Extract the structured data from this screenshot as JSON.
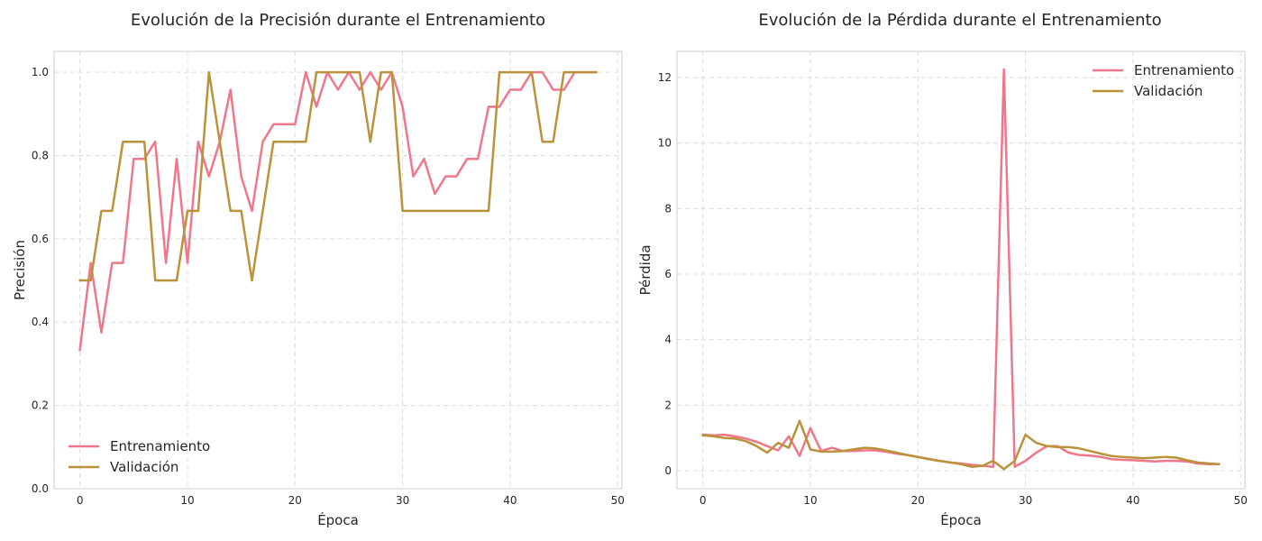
{
  "colors": {
    "entrenamiento": "#f0778a",
    "validacion": "#b9923a"
  },
  "chart_data": [
    {
      "type": "line",
      "title": "Evolución de la Precisión durante el Entrenamiento",
      "xlabel": "Época",
      "ylabel": "Precisión",
      "xlim": [
        -2.4,
        50.4
      ],
      "ylim": [
        0.0,
        1.05
      ],
      "xticks": [
        0,
        10,
        20,
        30,
        40,
        50
      ],
      "yticks": [
        0.0,
        0.2,
        0.4,
        0.6,
        0.8,
        1.0
      ],
      "ytick_labels": [
        "0.0",
        "0.2",
        "0.4",
        "0.6",
        "0.8",
        "1.0"
      ],
      "grid": true,
      "legend_position": "lower-left",
      "x": [
        0,
        1,
        2,
        3,
        4,
        5,
        6,
        7,
        8,
        9,
        10,
        11,
        12,
        13,
        14,
        15,
        16,
        17,
        18,
        19,
        20,
        21,
        22,
        23,
        24,
        25,
        26,
        27,
        28,
        29,
        30,
        31,
        32,
        33,
        34,
        35,
        36,
        37,
        38,
        39,
        40,
        41,
        42,
        43,
        44,
        45,
        46,
        47,
        48
      ],
      "series": [
        {
          "name": "Entrenamiento",
          "color_key": "entrenamiento",
          "values": [
            0.333,
            0.542,
            0.375,
            0.542,
            0.542,
            0.792,
            0.792,
            0.833,
            0.542,
            0.792,
            0.542,
            0.833,
            0.75,
            0.833,
            0.958,
            0.75,
            0.667,
            0.833,
            0.875,
            0.875,
            0.875,
            1.0,
            0.917,
            1.0,
            0.958,
            1.0,
            0.958,
            1.0,
            0.958,
            1.0,
            0.917,
            0.75,
            0.792,
            0.708,
            0.75,
            0.75,
            0.792,
            0.792,
            0.917,
            0.917,
            0.958,
            0.958,
            1.0,
            1.0,
            0.958,
            0.958,
            1.0,
            1.0,
            1.0
          ]
        },
        {
          "name": "Validación",
          "color_key": "validacion",
          "values": [
            0.5,
            0.5,
            0.667,
            0.667,
            0.833,
            0.833,
            0.833,
            0.5,
            0.5,
            0.5,
            0.667,
            0.667,
            1.0,
            0.833,
            0.667,
            0.667,
            0.5,
            0.667,
            0.833,
            0.833,
            0.833,
            0.833,
            1.0,
            1.0,
            1.0,
            1.0,
            1.0,
            0.833,
            1.0,
            1.0,
            0.667,
            0.667,
            0.667,
            0.667,
            0.667,
            0.667,
            0.667,
            0.667,
            0.667,
            1.0,
            1.0,
            1.0,
            1.0,
            0.833,
            0.833,
            1.0,
            1.0,
            1.0,
            1.0
          ]
        }
      ]
    },
    {
      "type": "line",
      "title": "Evolución de la Pérdida durante el Entrenamiento",
      "xlabel": "Época",
      "ylabel": "Pérdida",
      "xlim": [
        -2.4,
        50.4
      ],
      "ylim": [
        -0.55,
        12.8
      ],
      "xticks": [
        0,
        10,
        20,
        30,
        40,
        50
      ],
      "yticks": [
        0,
        2,
        4,
        6,
        8,
        10,
        12
      ],
      "ytick_labels": [
        "0",
        "2",
        "4",
        "6",
        "8",
        "10",
        "12"
      ],
      "grid": true,
      "legend_position": "top-right",
      "x": [
        0,
        1,
        2,
        3,
        4,
        5,
        6,
        7,
        8,
        9,
        10,
        11,
        12,
        13,
        14,
        15,
        16,
        17,
        18,
        19,
        20,
        21,
        22,
        23,
        24,
        25,
        26,
        27,
        28,
        29,
        30,
        31,
        32,
        33,
        34,
        35,
        36,
        37,
        38,
        39,
        40,
        41,
        42,
        43,
        44,
        45,
        46,
        47,
        48
      ],
      "series": [
        {
          "name": "Entrenamiento",
          "color_key": "entrenamiento",
          "values": [
            1.1,
            1.08,
            1.1,
            1.05,
            0.98,
            0.88,
            0.75,
            0.62,
            1.05,
            0.45,
            1.3,
            0.6,
            0.7,
            0.6,
            0.6,
            0.62,
            0.62,
            0.58,
            0.52,
            0.48,
            0.42,
            0.36,
            0.3,
            0.25,
            0.22,
            0.18,
            0.15,
            0.12,
            12.25,
            0.12,
            0.3,
            0.55,
            0.75,
            0.75,
            0.55,
            0.48,
            0.46,
            0.42,
            0.35,
            0.33,
            0.32,
            0.3,
            0.28,
            0.3,
            0.3,
            0.28,
            0.22,
            0.2,
            0.2
          ]
        },
        {
          "name": "Validación",
          "color_key": "validacion",
          "values": [
            1.08,
            1.05,
            1.0,
            0.98,
            0.9,
            0.75,
            0.55,
            0.85,
            0.7,
            1.52,
            0.65,
            0.58,
            0.58,
            0.6,
            0.65,
            0.7,
            0.68,
            0.62,
            0.55,
            0.48,
            0.42,
            0.35,
            0.3,
            0.25,
            0.2,
            0.12,
            0.15,
            0.3,
            0.05,
            0.3,
            1.1,
            0.85,
            0.75,
            0.72,
            0.72,
            0.68,
            0.6,
            0.52,
            0.45,
            0.42,
            0.4,
            0.38,
            0.4,
            0.42,
            0.4,
            0.32,
            0.25,
            0.22,
            0.2
          ]
        }
      ]
    }
  ]
}
